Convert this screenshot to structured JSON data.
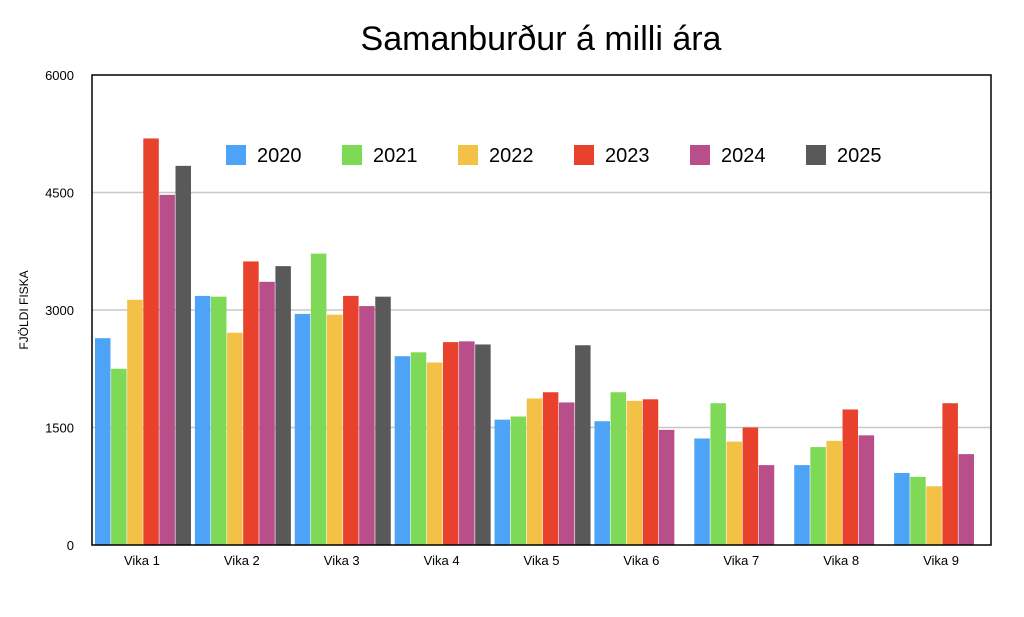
{
  "chart_data": {
    "type": "bar",
    "title": "Samanburður á milli ára",
    "xlabel": "",
    "ylabel": "FJÖLDI FISKA",
    "ylim": [
      0,
      6000
    ],
    "yticks": [
      "0",
      "1500",
      "3000",
      "4500",
      "6000"
    ],
    "ytick_values": [
      0,
      1500,
      3000,
      4500,
      6000
    ],
    "grid": true,
    "legend_position": "top-center-inside",
    "categories": [
      "Vika 1",
      "Vika 2",
      "Vika 3",
      "Vika 4",
      "Vika 5",
      "Vika 6",
      "Vika 7",
      "Vika 8",
      "Vika 9"
    ],
    "series": [
      {
        "name": "2020",
        "color": "#4da3f5",
        "values": [
          2640,
          3180,
          2950,
          2410,
          1600,
          1580,
          1360,
          1020,
          920
        ]
      },
      {
        "name": "2021",
        "color": "#7ed957",
        "values": [
          2250,
          3170,
          3720,
          2460,
          1640,
          1950,
          1810,
          1250,
          870
        ]
      },
      {
        "name": "2022",
        "color": "#f2c146",
        "values": [
          3130,
          2710,
          2940,
          2330,
          1870,
          1840,
          1320,
          1330,
          750
        ]
      },
      {
        "name": "2023",
        "color": "#e8412c",
        "values": [
          5190,
          3620,
          3180,
          2590,
          1950,
          1860,
          1500,
          1730,
          1810
        ]
      },
      {
        "name": "2024",
        "color": "#b84f8a",
        "values": [
          4470,
          3360,
          3050,
          2600,
          1820,
          1470,
          1020,
          1400,
          1160
        ]
      },
      {
        "name": "2025",
        "color": "#595959",
        "values": [
          4840,
          3560,
          3170,
          2560,
          2550,
          null,
          null,
          null,
          null
        ]
      }
    ]
  }
}
